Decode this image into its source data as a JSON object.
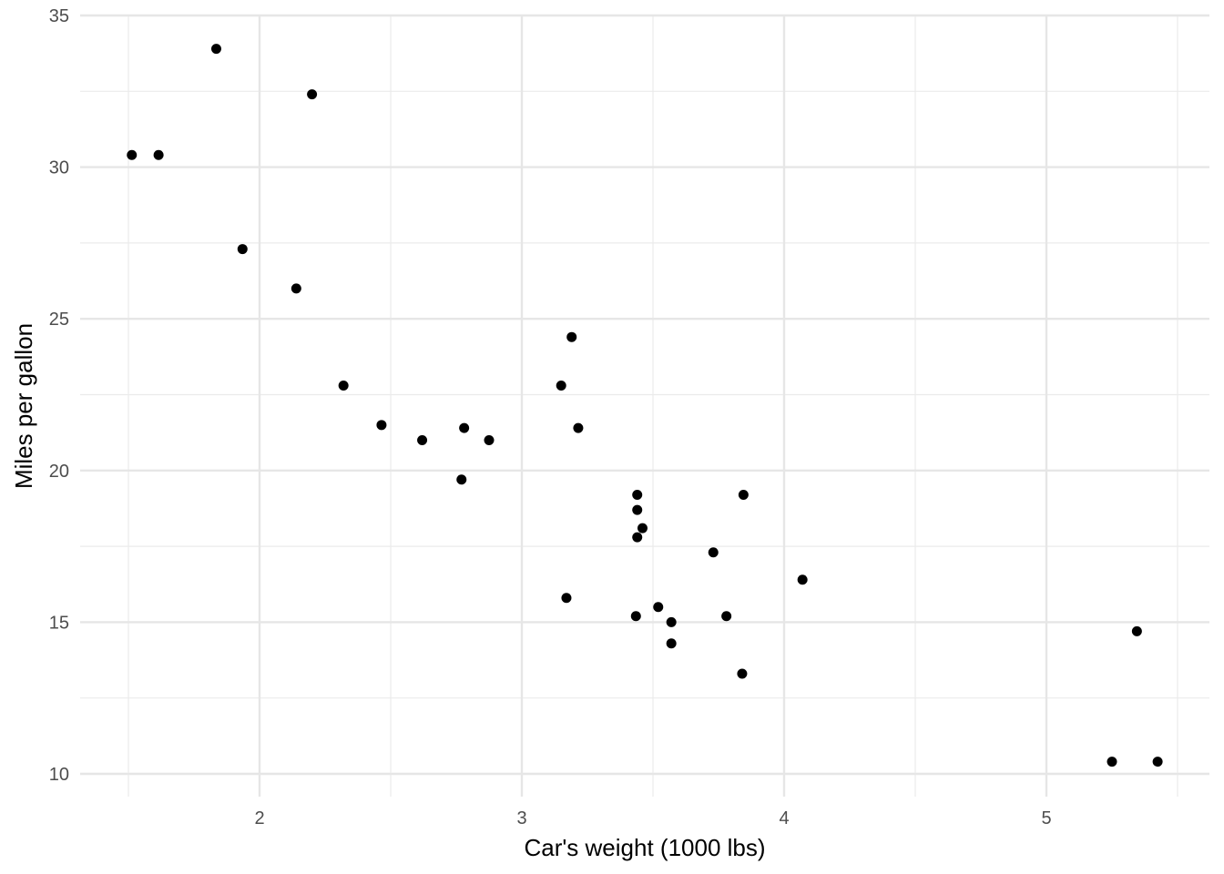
{
  "chart_data": {
    "type": "scatter",
    "title": "",
    "xlabel": "Car's weight (1000 lbs)",
    "ylabel": "Miles per gallon",
    "xlim": [
      1.5,
      5.5
    ],
    "ylim": [
      10,
      35
    ],
    "x_ticks": [
      2,
      3,
      4,
      5
    ],
    "y_ticks": [
      10,
      15,
      20,
      25,
      30,
      35
    ],
    "grid": true,
    "legend": null,
    "point_color": "#000000",
    "points": [
      {
        "x": 2.62,
        "y": 21.0
      },
      {
        "x": 2.875,
        "y": 21.0
      },
      {
        "x": 2.32,
        "y": 22.8
      },
      {
        "x": 3.215,
        "y": 21.4
      },
      {
        "x": 3.44,
        "y": 18.7
      },
      {
        "x": 3.46,
        "y": 18.1
      },
      {
        "x": 3.57,
        "y": 14.3
      },
      {
        "x": 3.19,
        "y": 24.4
      },
      {
        "x": 3.15,
        "y": 22.8
      },
      {
        "x": 3.44,
        "y": 19.2
      },
      {
        "x": 3.44,
        "y": 17.8
      },
      {
        "x": 4.07,
        "y": 16.4
      },
      {
        "x": 3.73,
        "y": 17.3
      },
      {
        "x": 3.78,
        "y": 15.2
      },
      {
        "x": 5.25,
        "y": 10.4
      },
      {
        "x": 5.424,
        "y": 10.4
      },
      {
        "x": 5.345,
        "y": 14.7
      },
      {
        "x": 2.2,
        "y": 32.4
      },
      {
        "x": 1.615,
        "y": 30.4
      },
      {
        "x": 1.835,
        "y": 33.9
      },
      {
        "x": 2.465,
        "y": 21.5
      },
      {
        "x": 3.52,
        "y": 15.5
      },
      {
        "x": 3.435,
        "y": 15.2
      },
      {
        "x": 3.84,
        "y": 13.3
      },
      {
        "x": 3.845,
        "y": 19.2
      },
      {
        "x": 1.935,
        "y": 27.3
      },
      {
        "x": 2.14,
        "y": 26.0
      },
      {
        "x": 1.513,
        "y": 30.4
      },
      {
        "x": 3.17,
        "y": 15.8
      },
      {
        "x": 2.77,
        "y": 19.7
      },
      {
        "x": 3.57,
        "y": 15.0
      },
      {
        "x": 2.78,
        "y": 21.4
      }
    ]
  }
}
